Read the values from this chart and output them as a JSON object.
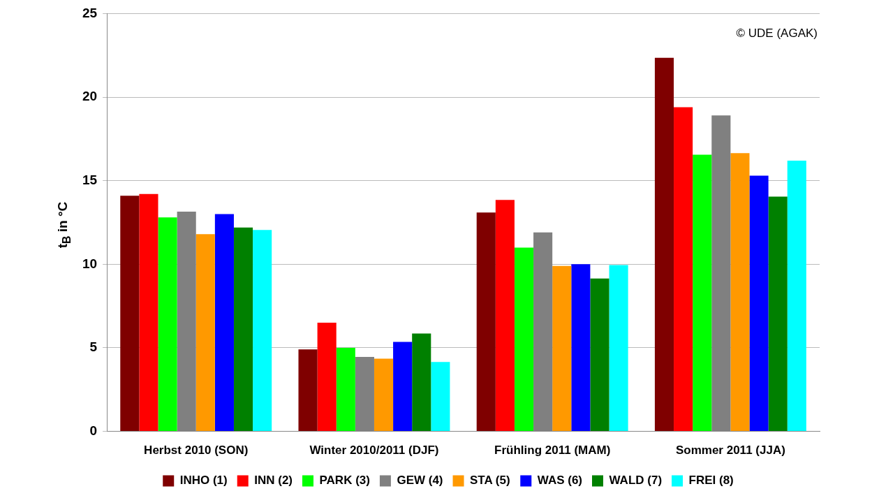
{
  "chart_data": {
    "type": "bar",
    "ylabel": "t$_{B}$ in °C",
    "annotations": [
      "© UDE (AGAK)"
    ],
    "categories": [
      "Herbst 2010 (SON)",
      "Winter 2010/2011 (DJF)",
      "Frühling 2011 (MAM)",
      "Sommer 2011 (JJA)"
    ],
    "series": [
      {
        "name": "INHO (1)",
        "color": "#7f0000",
        "values": [
          14.1,
          4.9,
          13.1,
          22.35
        ]
      },
      {
        "name": "INN (2)",
        "color": "#ff0000",
        "values": [
          14.2,
          6.5,
          13.85,
          19.4
        ]
      },
      {
        "name": "PARK (3)",
        "color": "#00ff00",
        "values": [
          12.8,
          5.0,
          11.0,
          16.55
        ]
      },
      {
        "name": "GEW (4)",
        "color": "#808080",
        "values": [
          13.15,
          4.45,
          11.9,
          18.9
        ]
      },
      {
        "name": "STA (5)",
        "color": "#ff9900",
        "values": [
          11.8,
          4.35,
          9.9,
          16.65
        ]
      },
      {
        "name": "WAS (6)",
        "color": "#0000ff",
        "values": [
          13.0,
          5.35,
          10.0,
          15.3
        ]
      },
      {
        "name": "WALD (7)",
        "color": "#008000",
        "values": [
          12.2,
          5.85,
          9.15,
          14.05
        ]
      },
      {
        "name": "FREI (8)",
        "color": "#00ffff",
        "values": [
          12.05,
          4.15,
          9.95,
          16.2
        ]
      }
    ],
    "ylim": [
      0,
      25
    ],
    "yticks": [
      0,
      5,
      10,
      15,
      20,
      25
    ],
    "grid": "y",
    "legend": "bottom"
  }
}
